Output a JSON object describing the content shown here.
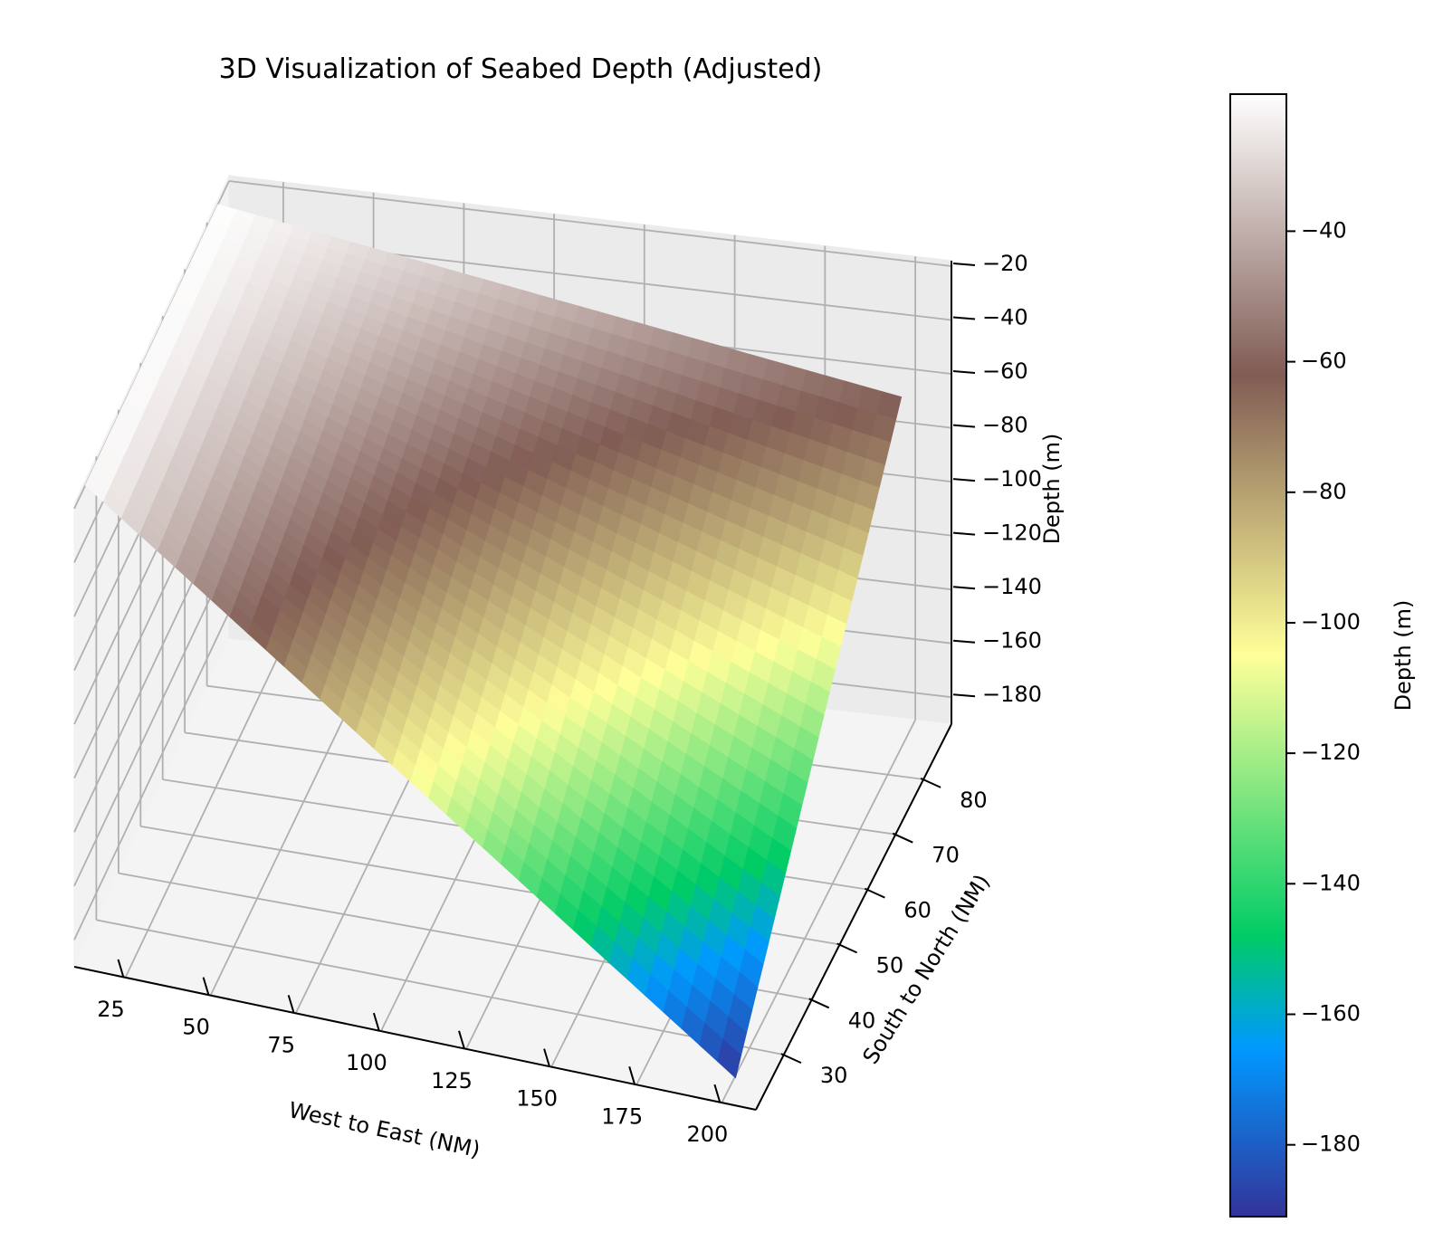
{
  "chart_data": {
    "type": "surface",
    "title": "3D Visualization of Seabed Depth (Adjusted)",
    "xlabel": "West to East (NM)",
    "ylabel": "South to North (NM)",
    "zlabel": "Depth (m)",
    "colorbar_label": "Depth (m)",
    "colormap": "terrain",
    "grid": true,
    "xlim": [
      10,
      210
    ],
    "ylim": [
      20,
      90
    ],
    "zlim": [
      -190,
      -18
    ],
    "x_ticks": [
      25,
      50,
      75,
      100,
      125,
      150,
      175,
      200
    ],
    "x_tick_labels": [
      "25",
      "50",
      "75",
      "100",
      "125",
      "150",
      "175",
      "200"
    ],
    "y_ticks": [
      30,
      40,
      50,
      60,
      70,
      80
    ],
    "y_tick_labels": [
      "30",
      "40",
      "50",
      "60",
      "70",
      "80"
    ],
    "z_ticks": [
      -20,
      -40,
      -60,
      -80,
      -100,
      -120,
      -140,
      -160,
      -180
    ],
    "z_tick_labels": [
      "−20",
      "−40",
      "−60",
      "−80",
      "−100",
      "−120",
      "−140",
      "−160",
      "−180"
    ],
    "colorbar_range": [
      -191,
      -19
    ],
    "colorbar_ticks": [
      -40,
      -60,
      -80,
      -100,
      -120,
      -140,
      -160,
      -180
    ],
    "colorbar_tick_labels": [
      "−40",
      "−60",
      "−80",
      "−100",
      "−120",
      "−140",
      "−160",
      "−180"
    ],
    "surface": {
      "x_range": [
        10,
        200
      ],
      "y_range": [
        25,
        85
      ],
      "corner_depths": {
        "x10_y25": -20,
        "x10_y85": -20,
        "x200_y85": -60,
        "x200_y25": -191
      },
      "min_depth": -191,
      "max_depth": -20
    }
  }
}
